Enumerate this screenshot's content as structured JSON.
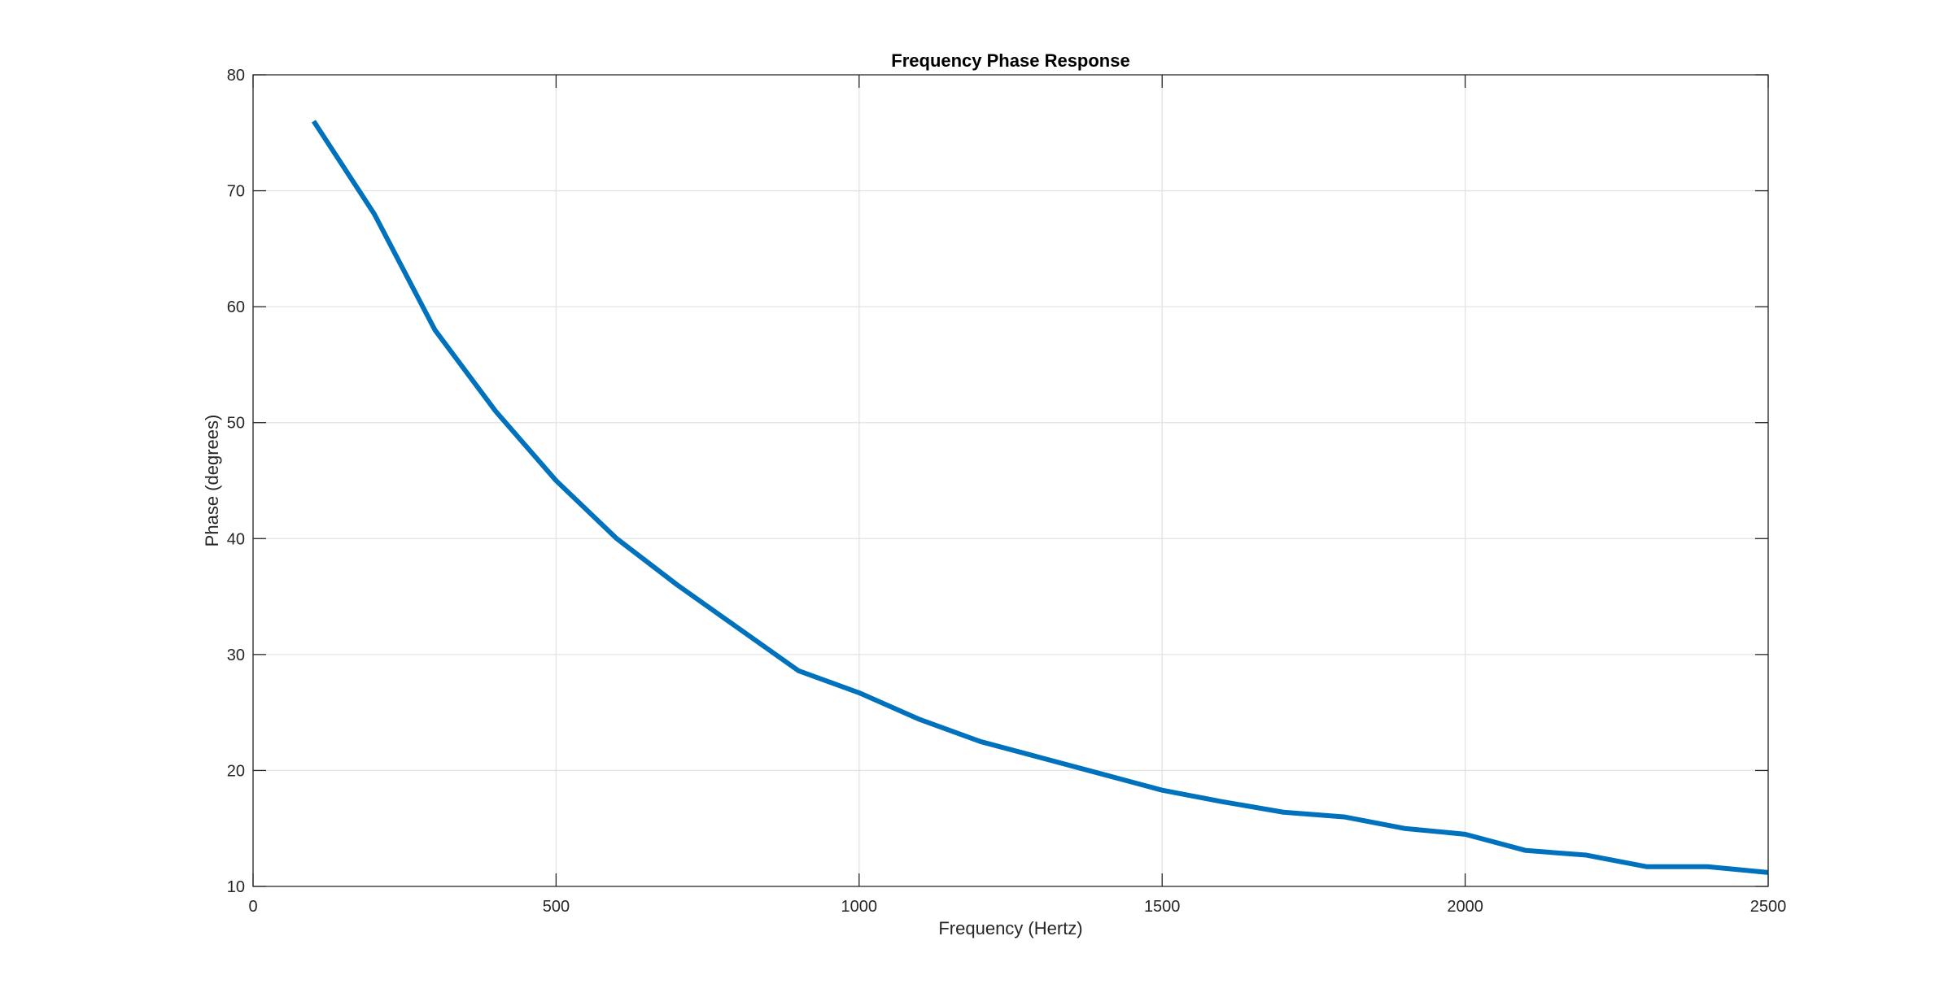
{
  "chart_data": {
    "type": "line",
    "title": "Frequency Phase Response",
    "xlabel": "Frequency (Hertz)",
    "ylabel": "Phase (degrees)",
    "xlim": [
      0,
      2500
    ],
    "ylim": [
      10,
      80
    ],
    "xticks": [
      0,
      500,
      1000,
      1500,
      2000,
      2500
    ],
    "yticks": [
      10,
      20,
      30,
      40,
      50,
      60,
      70,
      80
    ],
    "grid": true,
    "series": [
      {
        "color": "#0072bd",
        "x": [
          100,
          200,
          300,
          400,
          500,
          600,
          700,
          800,
          900,
          1000,
          1100,
          1200,
          1300,
          1400,
          1500,
          1600,
          1700,
          1800,
          1900,
          2000,
          2100,
          2200,
          2300,
          2400,
          2500
        ],
        "y": [
          76,
          68,
          58,
          51,
          45,
          40,
          36,
          32.3,
          28.6,
          26.7,
          24.4,
          22.5,
          21.1,
          19.7,
          18.3,
          17.3,
          16.4,
          16.0,
          15.0,
          14.5,
          13.1,
          12.7,
          11.7,
          11.7,
          11.2
        ]
      }
    ]
  }
}
